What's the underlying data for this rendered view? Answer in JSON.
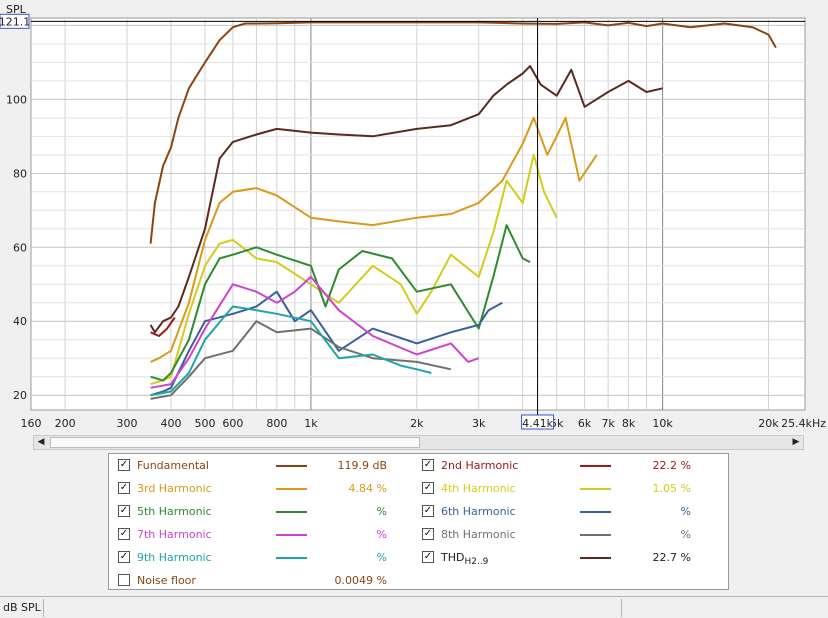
{
  "chart_data": {
    "type": "line",
    "ylabel": "SPL",
    "xscale": "log",
    "xlim": [
      160,
      25400
    ],
    "ylim": [
      16,
      122
    ],
    "yticks": [
      20,
      40,
      60,
      80,
      100
    ],
    "ytick_labels": [
      "20",
      "40",
      "60",
      "80",
      "100"
    ],
    "xticks": [
      {
        "v": 160,
        "label": "160"
      },
      {
        "v": 200,
        "label": "200"
      },
      {
        "v": 300,
        "label": "300"
      },
      {
        "v": 400,
        "label": "400"
      },
      {
        "v": 500,
        "label": "500"
      },
      {
        "v": 600,
        "label": "600"
      },
      {
        "v": 800,
        "label": "800"
      },
      {
        "v": 1000,
        "label": "1k"
      },
      {
        "v": 2000,
        "label": "2k"
      },
      {
        "v": 3000,
        "label": "3k"
      },
      {
        "v": 5000,
        "label": "5k"
      },
      {
        "v": 6000,
        "label": "6k"
      },
      {
        "v": 7000,
        "label": "7k"
      },
      {
        "v": 8000,
        "label": "8k"
      },
      {
        "v": 10000,
        "label": "10k"
      },
      {
        "v": 20000,
        "label": "20k"
      },
      {
        "v": 25400,
        "label": "25.4kHz"
      }
    ],
    "grid": true,
    "cursor": {
      "x": 4410,
      "y": 121.1,
      "x_label": "4.41k",
      "y_label": "121.1"
    },
    "series": [
      {
        "name": "Fundamental",
        "color": "#8b4513",
        "points": [
          [
            350,
            61
          ],
          [
            360,
            72
          ],
          [
            380,
            82
          ],
          [
            400,
            87
          ],
          [
            420,
            95
          ],
          [
            450,
            103
          ],
          [
            500,
            110
          ],
          [
            550,
            116
          ],
          [
            600,
            119.5
          ],
          [
            650,
            120.5
          ],
          [
            700,
            120.5
          ],
          [
            800,
            120.6
          ],
          [
            1000,
            120.8
          ],
          [
            1500,
            120.8
          ],
          [
            2000,
            120.8
          ],
          [
            3000,
            120.8
          ],
          [
            4000,
            120.5
          ],
          [
            5000,
            120.4
          ],
          [
            6000,
            120.8
          ],
          [
            7000,
            120
          ],
          [
            8000,
            120.7
          ],
          [
            9000,
            119.8
          ],
          [
            10000,
            120.5
          ],
          [
            12000,
            119.5
          ],
          [
            15000,
            120.5
          ],
          [
            18000,
            119.5
          ],
          [
            20000,
            117.5
          ],
          [
            21000,
            114
          ]
        ]
      },
      {
        "name": "THD",
        "color": "#5a2a1e",
        "points": [
          [
            350,
            39
          ],
          [
            360,
            37
          ],
          [
            380,
            40
          ],
          [
            400,
            41
          ],
          [
            420,
            44
          ],
          [
            450,
            52
          ],
          [
            500,
            65
          ],
          [
            550,
            84
          ],
          [
            600,
            88.5
          ],
          [
            700,
            90.5
          ],
          [
            800,
            92
          ],
          [
            1000,
            91
          ],
          [
            1200,
            90.5
          ],
          [
            1500,
            90
          ],
          [
            2000,
            92
          ],
          [
            2500,
            93
          ],
          [
            3000,
            96
          ],
          [
            3300,
            101
          ],
          [
            3600,
            104
          ],
          [
            4000,
            107
          ],
          [
            4200,
            109
          ],
          [
            4500,
            104
          ],
          [
            5000,
            101
          ],
          [
            5500,
            108
          ],
          [
            6000,
            98
          ],
          [
            7000,
            102
          ],
          [
            8000,
            105
          ],
          [
            9000,
            102
          ],
          [
            10000,
            103
          ]
        ]
      },
      {
        "name": "3rd Harmonic",
        "color": "#d99a1a",
        "points": [
          [
            350,
            29
          ],
          [
            370,
            30
          ],
          [
            400,
            32
          ],
          [
            450,
            45
          ],
          [
            500,
            62
          ],
          [
            550,
            72
          ],
          [
            600,
            75
          ],
          [
            700,
            76
          ],
          [
            800,
            74
          ],
          [
            1000,
            68
          ],
          [
            1200,
            67
          ],
          [
            1500,
            66
          ],
          [
            2000,
            68
          ],
          [
            2500,
            69
          ],
          [
            3000,
            72
          ],
          [
            3500,
            78
          ],
          [
            4000,
            88
          ],
          [
            4300,
            95
          ],
          [
            4700,
            85
          ],
          [
            5000,
            90
          ],
          [
            5300,
            95
          ],
          [
            5800,
            78
          ],
          [
            6500,
            85
          ]
        ]
      },
      {
        "name": "4th Harmonic",
        "color": "#d4cc1c",
        "points": [
          [
            350,
            23
          ],
          [
            380,
            24
          ],
          [
            400,
            25
          ],
          [
            450,
            42
          ],
          [
            500,
            55
          ],
          [
            550,
            61
          ],
          [
            600,
            62
          ],
          [
            700,
            57
          ],
          [
            800,
            56
          ],
          [
            1000,
            50
          ],
          [
            1200,
            45
          ],
          [
            1500,
            55
          ],
          [
            1800,
            50
          ],
          [
            2000,
            42
          ],
          [
            2200,
            48
          ],
          [
            2500,
            58
          ],
          [
            3000,
            52
          ],
          [
            3300,
            64
          ],
          [
            3600,
            78
          ],
          [
            4000,
            72
          ],
          [
            4300,
            85
          ],
          [
            4600,
            75
          ],
          [
            5000,
            68
          ]
        ]
      },
      {
        "name": "5th Harmonic",
        "color": "#2e8b2e",
        "points": [
          [
            350,
            25
          ],
          [
            380,
            24
          ],
          [
            400,
            26
          ],
          [
            450,
            35
          ],
          [
            500,
            50
          ],
          [
            550,
            57
          ],
          [
            600,
            58
          ],
          [
            700,
            60
          ],
          [
            800,
            58
          ],
          [
            1000,
            55
          ],
          [
            1100,
            44
          ],
          [
            1200,
            54
          ],
          [
            1400,
            59
          ],
          [
            1700,
            57
          ],
          [
            2000,
            48
          ],
          [
            2500,
            50
          ],
          [
            3000,
            38
          ],
          [
            3300,
            52
          ],
          [
            3600,
            66
          ],
          [
            4000,
            57
          ],
          [
            4200,
            56
          ]
        ]
      },
      {
        "name": "6th Harmonic",
        "color": "#3c5f9c",
        "points": [
          [
            350,
            20
          ],
          [
            380,
            21
          ],
          [
            400,
            22
          ],
          [
            450,
            32
          ],
          [
            500,
            40
          ],
          [
            600,
            42
          ],
          [
            700,
            44
          ],
          [
            800,
            48
          ],
          [
            900,
            40
          ],
          [
            1000,
            43
          ],
          [
            1200,
            32
          ],
          [
            1500,
            38
          ],
          [
            2000,
            34
          ],
          [
            2500,
            37
          ],
          [
            3000,
            39
          ],
          [
            3200,
            43
          ],
          [
            3500,
            45
          ]
        ]
      },
      {
        "name": "7th Harmonic",
        "color": "#cc44cc",
        "points": [
          [
            350,
            22
          ],
          [
            400,
            23
          ],
          [
            450,
            30
          ],
          [
            500,
            38
          ],
          [
            600,
            50
          ],
          [
            700,
            48
          ],
          [
            800,
            45
          ],
          [
            900,
            48
          ],
          [
            1000,
            52
          ],
          [
            1200,
            43
          ],
          [
            1500,
            36
          ],
          [
            2000,
            31
          ],
          [
            2500,
            34
          ],
          [
            2800,
            29
          ],
          [
            3000,
            30
          ]
        ]
      },
      {
        "name": "8th Harmonic",
        "color": "#707070",
        "points": [
          [
            350,
            19
          ],
          [
            400,
            20
          ],
          [
            450,
            25
          ],
          [
            500,
            30
          ],
          [
            600,
            32
          ],
          [
            700,
            40
          ],
          [
            800,
            37
          ],
          [
            1000,
            38
          ],
          [
            1200,
            33
          ],
          [
            1500,
            30
          ],
          [
            2000,
            29
          ],
          [
            2500,
            27
          ]
        ]
      },
      {
        "name": "9th Harmonic",
        "color": "#1fa5a5",
        "points": [
          [
            350,
            20
          ],
          [
            400,
            21
          ],
          [
            450,
            26
          ],
          [
            500,
            35
          ],
          [
            600,
            44
          ],
          [
            700,
            43
          ],
          [
            800,
            42
          ],
          [
            1000,
            40
          ],
          [
            1200,
            30
          ],
          [
            1500,
            31
          ],
          [
            1800,
            28
          ],
          [
            2000,
            27
          ],
          [
            2200,
            26
          ]
        ]
      },
      {
        "name": "2nd Harmonic",
        "color": "#a01818",
        "points": [
          [
            350,
            37
          ],
          [
            370,
            36
          ],
          [
            390,
            38
          ],
          [
            410,
            41
          ]
        ]
      }
    ]
  },
  "legend": {
    "items": [
      {
        "label": "Fundamental",
        "value": "119.9 dB",
        "color": "#8b4513",
        "label_color": "#8b4513",
        "checked": true
      },
      {
        "label": "2nd Harmonic",
        "value": "22.2 %",
        "color": "#a01818",
        "label_color": "#a01818",
        "checked": true
      },
      {
        "label": "3rd Harmonic",
        "value": "4.84 %",
        "color": "#d99a1a",
        "label_color": "#d99a1a",
        "checked": true
      },
      {
        "label": "4th Harmonic",
        "value": "1.05 %",
        "color": "#d4cc1c",
        "label_color": "#d4cc1c",
        "checked": true
      },
      {
        "label": "5th Harmonic",
        "value": "%",
        "color": "#2e8b2e",
        "label_color": "#2e8b2e",
        "checked": true
      },
      {
        "label": "6th Harmonic",
        "value": "%",
        "color": "#3c5f9c",
        "label_color": "#3c5f9c",
        "checked": true
      },
      {
        "label": "7th Harmonic",
        "value": "%",
        "color": "#cc44cc",
        "label_color": "#cc44cc",
        "checked": true
      },
      {
        "label": "8th Harmonic",
        "value": "%",
        "color": "#707070",
        "label_color": "#707070",
        "checked": true
      },
      {
        "label": "9th Harmonic",
        "value": "%",
        "color": "#1fa5a5",
        "label_color": "#1fa5a5",
        "checked": true
      },
      {
        "label": "THD",
        "label_sub": "H2..9",
        "value": "22.7 %",
        "color": "#5a2a1e",
        "label_color": "#222222",
        "checked": true
      },
      {
        "label": "Noise floor",
        "value": "0.0049 %",
        "color": "",
        "label_color": "#8b4513",
        "checked": false
      }
    ]
  },
  "check_glyph": "✓",
  "scroll": {
    "left_arrow": "◀",
    "right_arrow": "▶"
  },
  "status": {
    "units": "dB SPL"
  }
}
